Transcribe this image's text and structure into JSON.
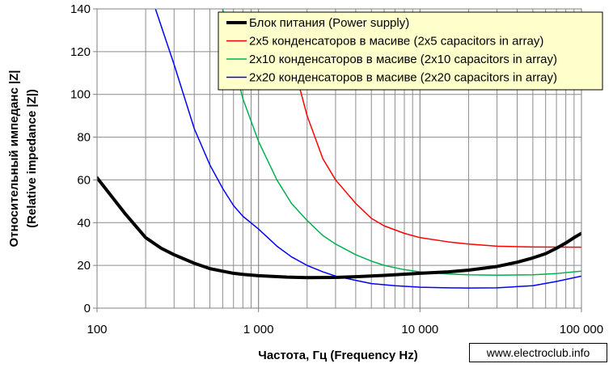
{
  "chart_data": {
    "type": "line",
    "xlabel": "Частота, Гц (Frequency Hz)",
    "ylabel_lines": [
      "Относительный импеданс |Z|",
      "(Relative impedance |Z|)"
    ],
    "x_scale": "log",
    "xlim": [
      100,
      100000
    ],
    "ylim": [
      0,
      140
    ],
    "x_ticks": [
      100,
      1000,
      10000,
      100000
    ],
    "x_tick_labels": [
      "100",
      "1 000",
      "10 000",
      "100 000"
    ],
    "y_ticks": [
      0,
      20,
      40,
      60,
      80,
      100,
      120,
      140
    ],
    "y_tick_labels": [
      "0",
      "20",
      "40",
      "60",
      "80",
      "100",
      "120",
      "140"
    ],
    "grid": true,
    "legend_position": "top-right",
    "series": [
      {
        "name": "Блок питания (Power supply)",
        "color": "#000000",
        "width": 4,
        "points": [
          [
            100,
            61
          ],
          [
            150,
            44
          ],
          [
            200,
            33
          ],
          [
            250,
            28
          ],
          [
            300,
            25
          ],
          [
            400,
            21
          ],
          [
            500,
            18.5
          ],
          [
            600,
            17.3
          ],
          [
            700,
            16.3
          ],
          [
            800,
            15.8
          ],
          [
            1000,
            15.2
          ],
          [
            1500,
            14.5
          ],
          [
            2000,
            14.3
          ],
          [
            3000,
            14.4
          ],
          [
            4000,
            14.7
          ],
          [
            6000,
            15.3
          ],
          [
            10000,
            16.3
          ],
          [
            15000,
            17
          ],
          [
            20000,
            17.8
          ],
          [
            30000,
            19.5
          ],
          [
            40000,
            21.5
          ],
          [
            50000,
            23.5
          ],
          [
            60000,
            25.5
          ],
          [
            70000,
            28
          ],
          [
            80000,
            30.5
          ],
          [
            90000,
            33
          ],
          [
            100000,
            35
          ]
        ]
      },
      {
        "name": "2x5 конденсаторов в масиве (2x5 capacitors in array)",
        "color": "#ff0000",
        "width": 1.5,
        "points": [
          [
            1500,
            138
          ],
          [
            1700,
            110
          ],
          [
            2000,
            90
          ],
          [
            2500,
            70
          ],
          [
            3000,
            60
          ],
          [
            4000,
            49
          ],
          [
            5000,
            42
          ],
          [
            6000,
            38.5
          ],
          [
            8000,
            35
          ],
          [
            10000,
            33
          ],
          [
            15000,
            31
          ],
          [
            20000,
            30
          ],
          [
            30000,
            29
          ],
          [
            50000,
            28.6
          ],
          [
            100000,
            28.5
          ]
        ]
      },
      {
        "name": "2x10 конденсаторов в масиве (2x10 capacitors in array)",
        "color": "#00b050",
        "width": 1.5,
        "points": [
          [
            600,
            140
          ],
          [
            700,
            115
          ],
          [
            800,
            98
          ],
          [
            1000,
            78
          ],
          [
            1300,
            60
          ],
          [
            1600,
            49
          ],
          [
            2000,
            41
          ],
          [
            2500,
            34
          ],
          [
            3000,
            30
          ],
          [
            4000,
            25
          ],
          [
            5000,
            22
          ],
          [
            6000,
            20
          ],
          [
            8000,
            18
          ],
          [
            10000,
            17
          ],
          [
            15000,
            16
          ],
          [
            20000,
            15.6
          ],
          [
            30000,
            15.4
          ],
          [
            50000,
            15.6
          ],
          [
            70000,
            16.2
          ],
          [
            100000,
            17.3
          ]
        ]
      },
      {
        "name": "2x20 конденсаторов в масиве (2x20 capacitors in array)",
        "color": "#0000ff",
        "width": 1.5,
        "points": [
          [
            230,
            140
          ],
          [
            300,
            114
          ],
          [
            400,
            84
          ],
          [
            500,
            67
          ],
          [
            600,
            56
          ],
          [
            700,
            48
          ],
          [
            800,
            43
          ],
          [
            1000,
            37
          ],
          [
            1300,
            29
          ],
          [
            1600,
            24
          ],
          [
            2000,
            20
          ],
          [
            2500,
            17
          ],
          [
            3000,
            15
          ],
          [
            4000,
            13
          ],
          [
            5000,
            11.5
          ],
          [
            7000,
            10.5
          ],
          [
            10000,
            9.8
          ],
          [
            15000,
            9.5
          ],
          [
            20000,
            9.4
          ],
          [
            30000,
            9.5
          ],
          [
            50000,
            10.5
          ],
          [
            70000,
            12.5
          ],
          [
            100000,
            15
          ]
        ]
      }
    ]
  },
  "watermark": "www.electroclub.info"
}
